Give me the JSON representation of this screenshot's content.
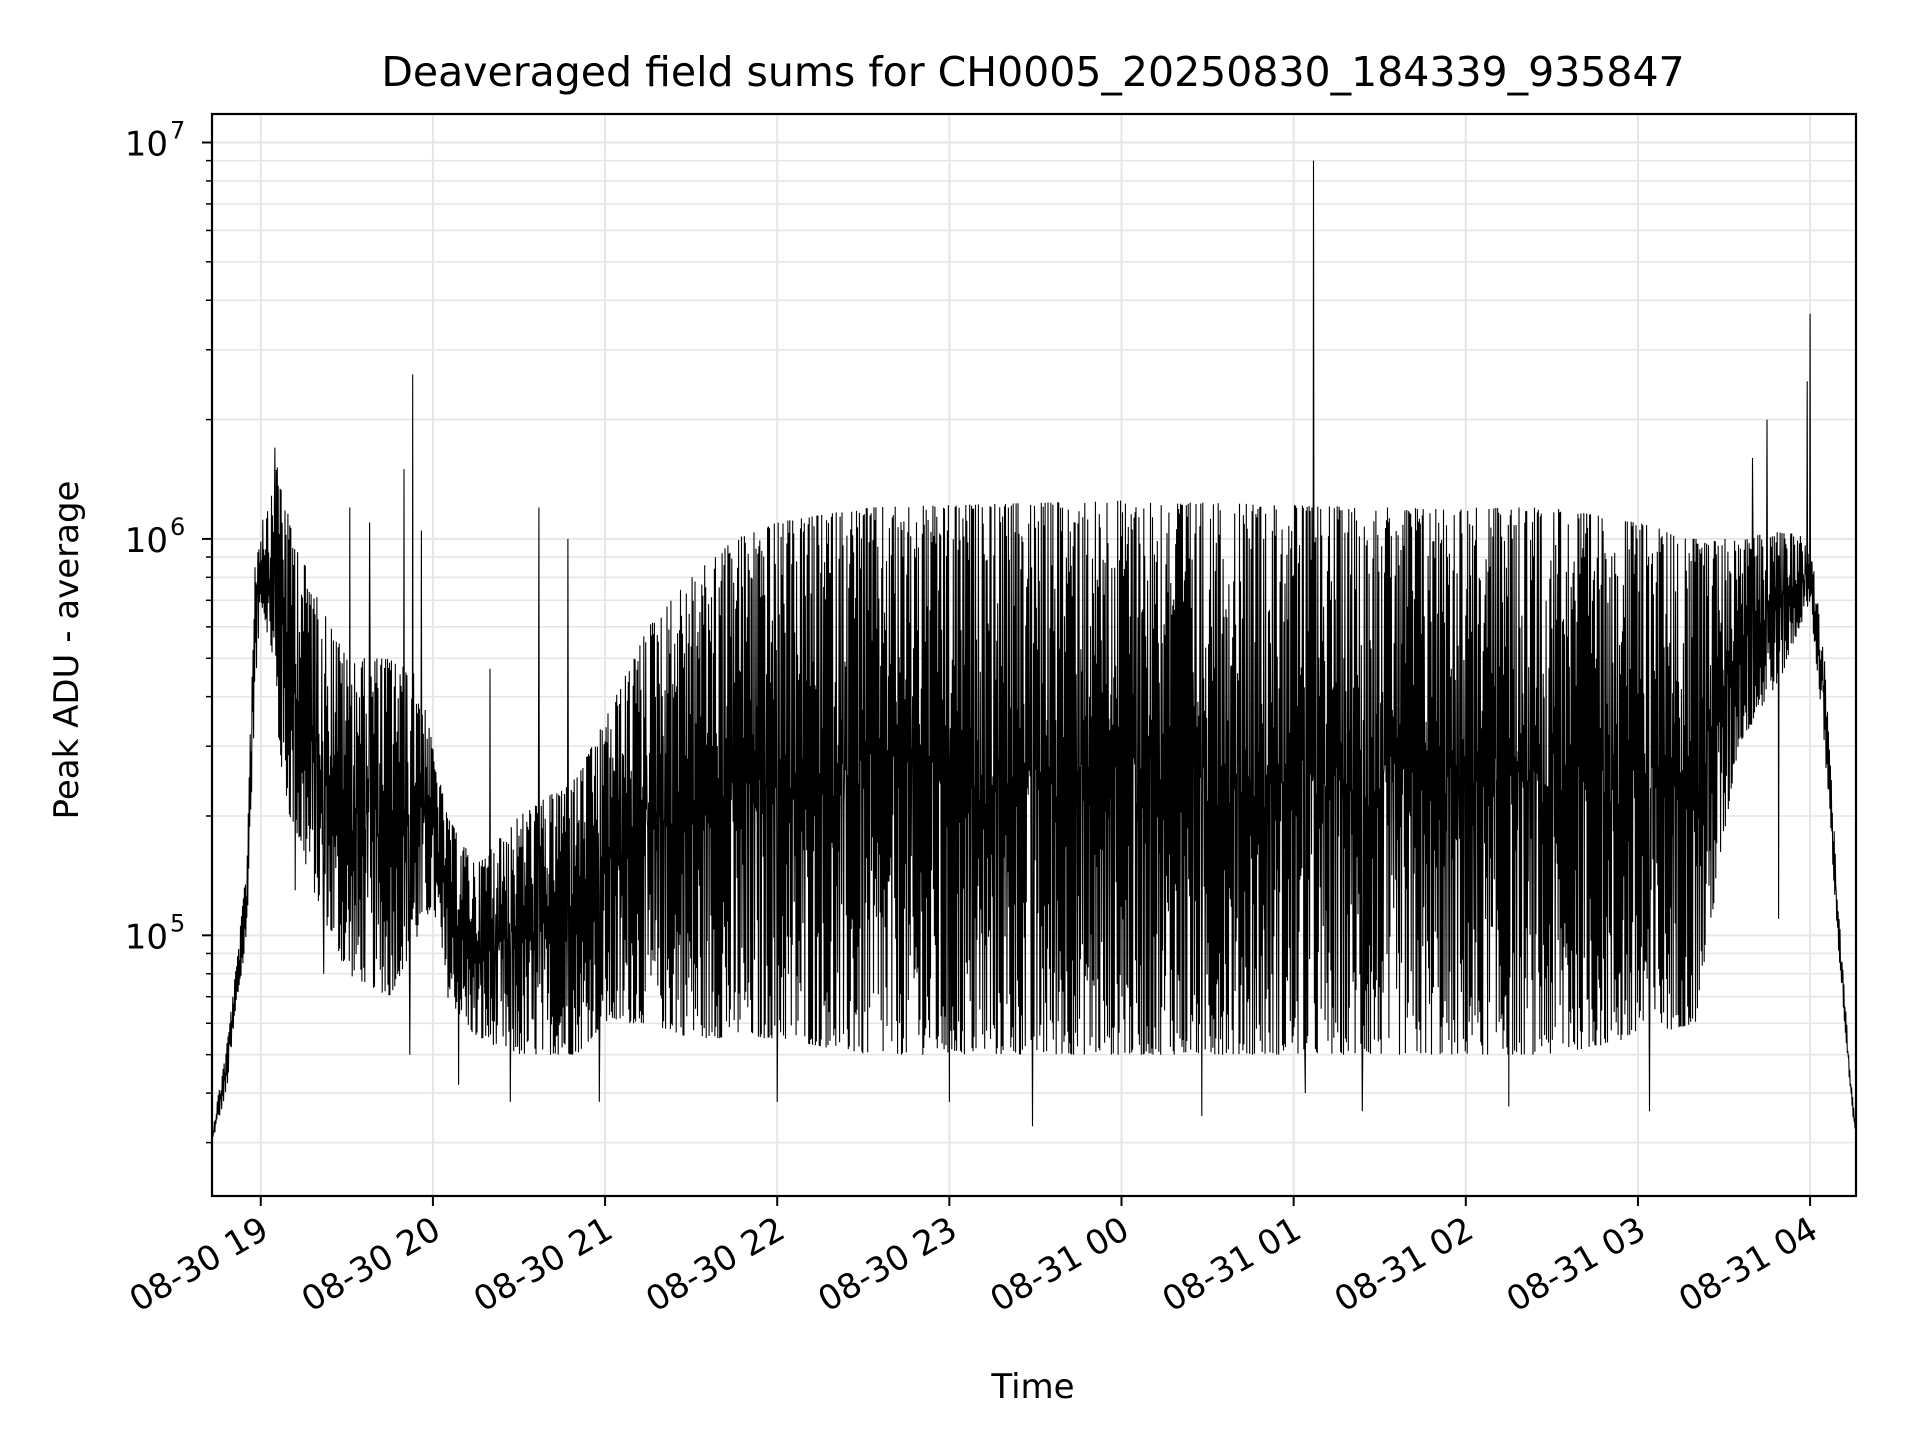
{
  "chart_data": {
    "type": "line",
    "title": "Deaveraged field sums for CH0005_20250830_184339_935847",
    "xlabel": "Time",
    "ylabel": "Peak ADU - average",
    "y_scale": "log",
    "ylim": [
      22000,
      11800000
    ],
    "xlim": [
      "2025-08-30 18:43",
      "2025-08-31 04:16"
    ],
    "grid": true,
    "line_color": "#000000",
    "x_ticks": [
      {
        "time": "2025-08-30 19:00",
        "label": "08-30 19"
      },
      {
        "time": "2025-08-30 20:00",
        "label": "08-30 20"
      },
      {
        "time": "2025-08-30 21:00",
        "label": "08-30 21"
      },
      {
        "time": "2025-08-30 22:00",
        "label": "08-30 22"
      },
      {
        "time": "2025-08-30 23:00",
        "label": "08-30 23"
      },
      {
        "time": "2025-08-31 00:00",
        "label": "08-31 00"
      },
      {
        "time": "2025-08-31 01:00",
        "label": "08-31 01"
      },
      {
        "time": "2025-08-31 02:00",
        "label": "08-31 02"
      },
      {
        "time": "2025-08-31 03:00",
        "label": "08-31 03"
      },
      {
        "time": "2025-08-31 04:00",
        "label": "08-31 04"
      }
    ],
    "y_ticks": [
      {
        "value": 100000,
        "base": "10",
        "exp": "5"
      },
      {
        "value": 1000000,
        "base": "10",
        "exp": "6"
      },
      {
        "value": 10000000,
        "base": "10",
        "exp": "7"
      }
    ],
    "envelope": [
      {
        "t": "2025-08-30 18:43",
        "low": 30000,
        "high": 32000
      },
      {
        "t": "2025-08-30 18:48",
        "low": 40000,
        "high": 52000
      },
      {
        "t": "2025-08-30 18:52",
        "low": 70000,
        "high": 90000
      },
      {
        "t": "2025-08-30 18:55",
        "low": 95000,
        "high": 150000
      },
      {
        "t": "2025-08-30 18:58",
        "low": 400000,
        "high": 900000
      },
      {
        "t": "2025-08-30 19:00",
        "low": 700000,
        "high": 1100000
      },
      {
        "t": "2025-08-30 19:04",
        "low": 500000,
        "high": 1300000
      },
      {
        "t": "2025-08-30 19:06",
        "low": 300000,
        "high": 1600000
      },
      {
        "t": "2025-08-30 19:10",
        "low": 200000,
        "high": 1100000
      },
      {
        "t": "2025-08-30 19:20",
        "low": 120000,
        "high": 700000
      },
      {
        "t": "2025-08-30 19:30",
        "low": 80000,
        "high": 500000
      },
      {
        "t": "2025-08-30 19:45",
        "low": 70000,
        "high": 500000
      },
      {
        "t": "2025-08-30 19:55",
        "low": 100000,
        "high": 450000
      },
      {
        "t": "2025-08-30 20:00",
        "low": 120000,
        "high": 300000
      },
      {
        "t": "2025-08-30 20:05",
        "low": 70000,
        "high": 200000
      },
      {
        "t": "2025-08-30 20:15",
        "low": 55000,
        "high": 150000
      },
      {
        "t": "2025-08-30 20:30",
        "low": 50000,
        "high": 200000
      },
      {
        "t": "2025-08-30 20:50",
        "low": 50000,
        "high": 250000
      },
      {
        "t": "2025-08-30 21:00",
        "low": 60000,
        "high": 350000
      },
      {
        "t": "2025-08-30 21:15",
        "low": 60000,
        "high": 600000
      },
      {
        "t": "2025-08-30 21:30",
        "low": 55000,
        "high": 800000
      },
      {
        "t": "2025-08-30 21:45",
        "low": 55000,
        "high": 1000000
      },
      {
        "t": "2025-08-30 22:00",
        "low": 55000,
        "high": 1100000
      },
      {
        "t": "2025-08-30 22:30",
        "low": 50000,
        "high": 1200000
      },
      {
        "t": "2025-08-31 00:00",
        "low": 50000,
        "high": 1250000
      },
      {
        "t": "2025-08-31 01:30",
        "low": 50000,
        "high": 1200000
      },
      {
        "t": "2025-08-31 02:30",
        "low": 50000,
        "high": 1200000
      },
      {
        "t": "2025-08-31 03:00",
        "low": 55000,
        "high": 1100000
      },
      {
        "t": "2025-08-31 03:20",
        "low": 60000,
        "high": 1000000
      },
      {
        "t": "2025-08-31 03:35",
        "low": 300000,
        "high": 1000000
      },
      {
        "t": "2025-08-31 03:50",
        "low": 450000,
        "high": 1050000
      },
      {
        "t": "2025-08-31 04:00",
        "low": 700000,
        "high": 1000000
      },
      {
        "t": "2025-08-31 04:05",
        "low": 300000,
        "high": 500000
      },
      {
        "t": "2025-08-31 04:10",
        "low": 90000,
        "high": 115000
      },
      {
        "t": "2025-08-31 04:14",
        "low": 40000,
        "high": 45000
      },
      {
        "t": "2025-08-31 04:16",
        "low": 30000,
        "high": 32000
      }
    ],
    "spikes": [
      {
        "t": "2025-08-30 19:05",
        "value": 1700000
      },
      {
        "t": "2025-08-30 19:12",
        "value": 130000
      },
      {
        "t": "2025-08-30 19:22",
        "value": 80000
      },
      {
        "t": "2025-08-30 19:31",
        "value": 1200000
      },
      {
        "t": "2025-08-30 19:38",
        "value": 1100000
      },
      {
        "t": "2025-08-30 19:50",
        "value": 1500000
      },
      {
        "t": "2025-08-30 19:52",
        "value": 50000
      },
      {
        "t": "2025-08-30 19:53",
        "value": 2600000
      },
      {
        "t": "2025-08-30 19:56",
        "value": 1050000
      },
      {
        "t": "2025-08-30 20:09",
        "value": 42000
      },
      {
        "t": "2025-08-30 20:20",
        "value": 470000
      },
      {
        "t": "2025-08-30 20:27",
        "value": 38000
      },
      {
        "t": "2025-08-30 20:37",
        "value": 1200000
      },
      {
        "t": "2025-08-30 20:47",
        "value": 1000000
      },
      {
        "t": "2025-08-30 20:58",
        "value": 38000
      },
      {
        "t": "2025-08-30 22:00",
        "value": 38000
      },
      {
        "t": "2025-08-30 23:00",
        "value": 38000
      },
      {
        "t": "2025-08-30 23:29",
        "value": 33000
      },
      {
        "t": "2025-08-31 00:28",
        "value": 35000
      },
      {
        "t": "2025-08-31 01:07",
        "value": 9000000
      },
      {
        "t": "2025-08-31 01:04",
        "value": 40000
      },
      {
        "t": "2025-08-31 01:24",
        "value": 36000
      },
      {
        "t": "2025-08-31 02:15",
        "value": 37000
      },
      {
        "t": "2025-08-31 03:04",
        "value": 36000
      },
      {
        "t": "2025-08-31 03:40",
        "value": 1600000
      },
      {
        "t": "2025-08-31 03:45",
        "value": 2000000
      },
      {
        "t": "2025-08-31 03:49",
        "value": 110000
      },
      {
        "t": "2025-08-31 03:59",
        "value": 2500000
      },
      {
        "t": "2025-08-31 04:00",
        "value": 3700000
      }
    ]
  }
}
